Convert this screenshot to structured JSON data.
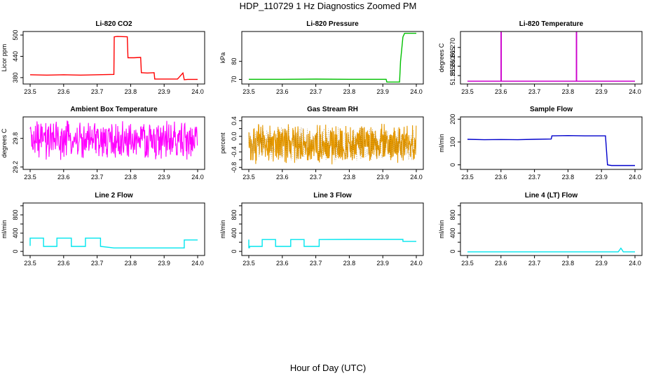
{
  "figure": {
    "title": "HDP_110729  1 Hz Diagnostics Zoomed PM",
    "outer_xlabel": "Hour of Day (UTC)"
  },
  "chart_data": [
    {
      "type": "line",
      "title": "Li-820 CO2",
      "ylabel": "Licor ppm",
      "color": "#ff0000",
      "xlim": [
        23.5,
        24.0
      ],
      "ylim": [
        362,
        510
      ],
      "xticks": [
        23.5,
        23.6,
        23.7,
        23.8,
        23.9,
        24.0
      ],
      "xtick_labels": [
        "23.5",
        "23.6",
        "23.7",
        "23.8",
        "23.9",
        "24.0"
      ],
      "yticks": [
        380,
        440,
        500
      ],
      "ytick_labels": [
        "380",
        "440",
        "500"
      ],
      "series": [
        {
          "x": [
            23.5,
            23.55,
            23.6,
            23.65,
            23.7,
            23.75,
            23.751,
            23.76,
            23.79,
            23.792,
            23.81,
            23.83,
            23.832,
            23.85,
            23.87,
            23.872,
            23.9,
            23.94,
            23.956,
            23.96,
            23.97,
            24.0
          ],
          "y": [
            388,
            387,
            388,
            387,
            388,
            389,
            495,
            496,
            495,
            436,
            436,
            437,
            394,
            393,
            394,
            376,
            376,
            376,
            393,
            374,
            375,
            375
          ]
        }
      ]
    },
    {
      "type": "line",
      "title": "Li-820 Pressure",
      "ylabel": "kPa",
      "color": "#00c000",
      "xlim": [
        23.5,
        24.0
      ],
      "ylim": [
        67.5,
        96.5
      ],
      "xticks": [
        23.5,
        23.6,
        23.7,
        23.8,
        23.9,
        24.0
      ],
      "xtick_labels": [
        "23.5",
        "23.6",
        "23.7",
        "23.8",
        "23.9",
        "24.0"
      ],
      "yticks": [
        70,
        80
      ],
      "ytick_labels": [
        "70",
        "80"
      ],
      "series": [
        {
          "x": [
            23.5,
            23.6,
            23.7,
            23.8,
            23.91,
            23.912,
            23.95,
            23.953,
            23.96,
            23.965,
            24.0
          ],
          "y": [
            70.1,
            70.1,
            70.2,
            70.1,
            70.1,
            68.6,
            68.6,
            80.0,
            93.5,
            95.5,
            95.5
          ]
        }
      ]
    },
    {
      "type": "line",
      "title": "Li-820 Temperature",
      "ylabel": "degrees C",
      "color": "#cc00cc",
      "xlim": [
        23.5,
        24.0
      ],
      "ylim": [
        51.2505,
        51.2785
      ],
      "xticks": [
        23.5,
        23.6,
        23.7,
        23.8,
        23.9,
        24.0
      ],
      "xtick_labels": [
        "23.5",
        "23.6",
        "23.7",
        "23.8",
        "23.9",
        "24.0"
      ],
      "yticks": [
        51.255,
        51.26,
        51.265,
        51.27
      ],
      "ytick_labels": [
        "51.255",
        "51.260",
        "51.265",
        "51.270"
      ],
      "series": [
        {
          "x": [
            23.5,
            23.6,
            23.6,
            23.601,
            23.601,
            23.825,
            23.825,
            23.826,
            23.826,
            24.0
          ],
          "y": [
            51.252,
            51.252,
            51.278,
            51.278,
            51.252,
            51.252,
            51.278,
            51.278,
            51.252,
            51.252
          ]
        }
      ]
    },
    {
      "type": "line",
      "title": "Ambient Box Temperature",
      "ylabel": "degrees C",
      "color": "#ff00ff",
      "xlim": [
        23.5,
        24.0
      ],
      "ylim": [
        29.15,
        30.25
      ],
      "xticks": [
        23.5,
        23.6,
        23.7,
        23.8,
        23.9,
        24.0
      ],
      "xtick_labels": [
        "23.5",
        "23.6",
        "23.7",
        "23.8",
        "23.9",
        "24.0"
      ],
      "yticks": [
        29.2,
        29.8
      ],
      "ytick_labels": [
        "29.2",
        "29.8"
      ],
      "noise": {
        "center": 29.75,
        "amplitude": 0.45,
        "step": 0.0012
      }
    },
    {
      "type": "line",
      "title": "Gas Stream RH",
      "ylabel": "percent",
      "color": "#e69900",
      "xlim": [
        23.5,
        24.0
      ],
      "ylim": [
        -0.85,
        0.5
      ],
      "xticks": [
        23.5,
        23.6,
        23.7,
        23.8,
        23.9,
        24.0
      ],
      "xtick_labels": [
        "23.5",
        "23.6",
        "23.7",
        "23.8",
        "23.9",
        "24.0"
      ],
      "yticks": [
        -0.8,
        -0.6,
        -0.4,
        -0.2,
        0.0,
        0.2,
        0.4
      ],
      "ytick_labels": [
        "-0.8",
        "",
        "-0.4",
        "",
        "0.0",
        "",
        "0.4"
      ],
      "noise": {
        "center": -0.2,
        "amplitude": 0.55,
        "step": 0.0009
      }
    },
    {
      "type": "line",
      "title": "Sample Flow",
      "ylabel": "ml/min",
      "color": "#0000cc",
      "xlim": [
        23.5,
        24.0
      ],
      "ylim": [
        -20,
        210
      ],
      "xticks": [
        23.5,
        23.6,
        23.7,
        23.8,
        23.9,
        24.0
      ],
      "xtick_labels": [
        "23.5",
        "23.6",
        "23.7",
        "23.8",
        "23.9",
        "24.0"
      ],
      "yticks": [
        0,
        100,
        200
      ],
      "ytick_labels": [
        "0",
        "100",
        "200"
      ],
      "series": [
        {
          "x": [
            23.5,
            23.55,
            23.6,
            23.65,
            23.7,
            23.75,
            23.752,
            23.8,
            23.85,
            23.9,
            23.912,
            23.918,
            23.93,
            24.0
          ],
          "y": [
            112,
            110,
            111,
            110,
            112,
            113,
            127,
            128,
            127,
            127,
            127,
            0,
            -3,
            -3
          ]
        }
      ]
    },
    {
      "type": "line",
      "title": "Line 2 Flow",
      "ylabel": "ml/min",
      "color": "#00e5ee",
      "xlim": [
        23.5,
        24.0
      ],
      "ylim": [
        -90,
        1060
      ],
      "xticks": [
        23.5,
        23.6,
        23.7,
        23.8,
        23.9,
        24.0
      ],
      "xtick_labels": [
        "23.5",
        "23.6",
        "23.7",
        "23.8",
        "23.9",
        "24.0"
      ],
      "yticks": [
        0,
        200,
        400,
        600,
        800,
        1000
      ],
      "ytick_labels": [
        "0",
        "",
        "400",
        "",
        "800",
        ""
      ],
      "series": [
        {
          "x": [
            23.5,
            23.5,
            23.54,
            23.54,
            23.58,
            23.58,
            23.623,
            23.623,
            23.665,
            23.665,
            23.71,
            23.71,
            23.75,
            23.9,
            23.96,
            23.96,
            24.0
          ],
          "y": [
            120,
            290,
            290,
            110,
            110,
            290,
            290,
            110,
            110,
            290,
            290,
            110,
            75,
            75,
            75,
            250,
            250
          ]
        }
      ]
    },
    {
      "type": "line",
      "title": "Line 3 Flow",
      "ylabel": "ml/min",
      "color": "#00e5ee",
      "xlim": [
        23.5,
        24.0
      ],
      "ylim": [
        -90,
        1060
      ],
      "xticks": [
        23.5,
        23.6,
        23.7,
        23.8,
        23.9,
        24.0
      ],
      "xtick_labels": [
        "23.5",
        "23.6",
        "23.7",
        "23.8",
        "23.9",
        "24.0"
      ],
      "yticks": [
        0,
        200,
        400,
        600,
        800,
        1000
      ],
      "ytick_labels": [
        "0",
        "",
        "400",
        "",
        "800",
        ""
      ],
      "series": [
        {
          "x": [
            23.5,
            23.5,
            23.502,
            23.502,
            23.54,
            23.54,
            23.58,
            23.58,
            23.625,
            23.625,
            23.665,
            23.665,
            23.71,
            23.71,
            23.8,
            23.9,
            23.96,
            23.96,
            24.0
          ],
          "y": [
            260,
            80,
            80,
            110,
            110,
            260,
            260,
            110,
            110,
            260,
            260,
            110,
            110,
            260,
            262,
            262,
            262,
            220,
            220
          ]
        }
      ]
    },
    {
      "type": "line",
      "title": "Line 4 (LT) Flow",
      "ylabel": "ml/min",
      "color": "#00e5ee",
      "xlim": [
        23.5,
        24.0
      ],
      "ylim": [
        -90,
        1060
      ],
      "xticks": [
        23.5,
        23.6,
        23.7,
        23.8,
        23.9,
        24.0
      ],
      "xtick_labels": [
        "23.5",
        "23.6",
        "23.7",
        "23.8",
        "23.9",
        "24.0"
      ],
      "yticks": [
        0,
        200,
        400,
        600,
        800,
        1000
      ],
      "ytick_labels": [
        "0",
        "",
        "400",
        "",
        "800",
        ""
      ],
      "series": [
        {
          "x": [
            23.5,
            23.7,
            23.95,
            23.955,
            23.958,
            23.962,
            23.965,
            24.0
          ],
          "y": [
            -10,
            -10,
            -10,
            40,
            70,
            30,
            -10,
            -10
          ]
        }
      ]
    }
  ]
}
